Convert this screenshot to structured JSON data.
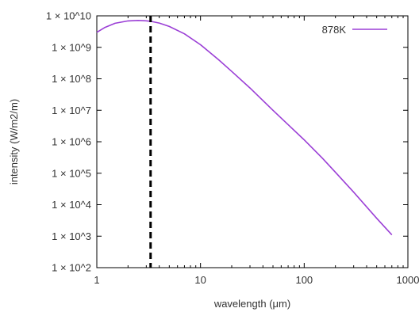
{
  "chart_data": {
    "type": "line",
    "title": "",
    "xlabel": "wavelength (μm)",
    "ylabel": "intensity (W/m2/m)",
    "x_scale": "log",
    "y_scale": "log",
    "xlim": [
      1,
      1000
    ],
    "ylim": [
      100,
      10000000000
    ],
    "x_ticks": [
      1,
      10,
      100,
      1000
    ],
    "x_tick_labels": [
      "1",
      "10",
      "100",
      "1000"
    ],
    "y_ticks": [
      100,
      1000,
      10000,
      100000,
      1000000,
      10000000,
      100000000,
      1000000000,
      10000000000
    ],
    "y_tick_labels": [
      "1 × 10^2",
      "1 × 10^3",
      "1 × 10^4",
      "1 × 10^5",
      "1 × 10^6",
      "1 × 10^7",
      "1 × 10^8",
      "1 × 10^9",
      "1 × 10^10"
    ],
    "grid": false,
    "legend_position": "top-right",
    "series": [
      {
        "name": "878K",
        "color": "#9b3fd6",
        "x": [
          1,
          1.2,
          1.5,
          2,
          2.5,
          3,
          3.3,
          4,
          5,
          7,
          10,
          15,
          20,
          30,
          50,
          70,
          100,
          150,
          200,
          300,
          500,
          700
        ],
        "y": [
          3000000000,
          4300000000,
          5800000000,
          6900000000,
          7150000000,
          6950000000,
          6700000000,
          5900000000,
          4600000000,
          2680000000,
          1210000000,
          400000000,
          171000000,
          51000000,
          10000000,
          3500000,
          1150000,
          300000,
          107000,
          25000,
          3700,
          1100
        ]
      }
    ],
    "annotations": [
      {
        "type": "vertical-dashed-line",
        "x": 3.3,
        "color": "#000000"
      }
    ]
  }
}
